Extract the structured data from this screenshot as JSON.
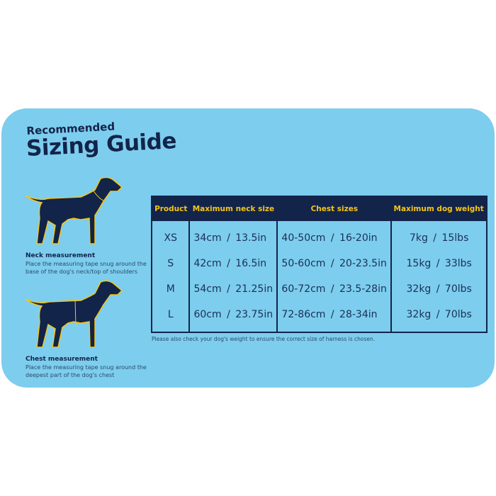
{
  "title": {
    "line1": "Recommended",
    "line2": "Sizing Guide"
  },
  "colors": {
    "background": "#7dcdee",
    "navy": "#12244a",
    "accent": "#f5c518"
  },
  "neck": {
    "heading": "Neck measurement",
    "text": "Place the measuring tape snug around the base of the dog's neck/top of shoulders"
  },
  "chest": {
    "heading": "Chest measurement",
    "text": "Place the measuring tape snug around the deepest part of the dog's chest"
  },
  "table": {
    "headers": [
      "Product",
      "Maximum neck size",
      "Chest sizes",
      "Maximum dog weight"
    ],
    "rows": [
      [
        "XS",
        "34cm / 13.5in",
        "40-50cm / 16-20in",
        "7kg / 15lbs"
      ],
      [
        "S",
        "42cm / 16.5in",
        "50-60cm / 20-23.5in",
        "15kg / 33lbs"
      ],
      [
        "M",
        "54cm / 21.25in",
        "60-72cm / 23.5-28in",
        "32kg / 70lbs"
      ],
      [
        "L",
        "60cm / 23.75in",
        "72-86cm / 28-34in",
        "32kg / 70lbs"
      ]
    ]
  },
  "note": "Please also check your dog's weight to ensure the correct size of harness is chosen."
}
